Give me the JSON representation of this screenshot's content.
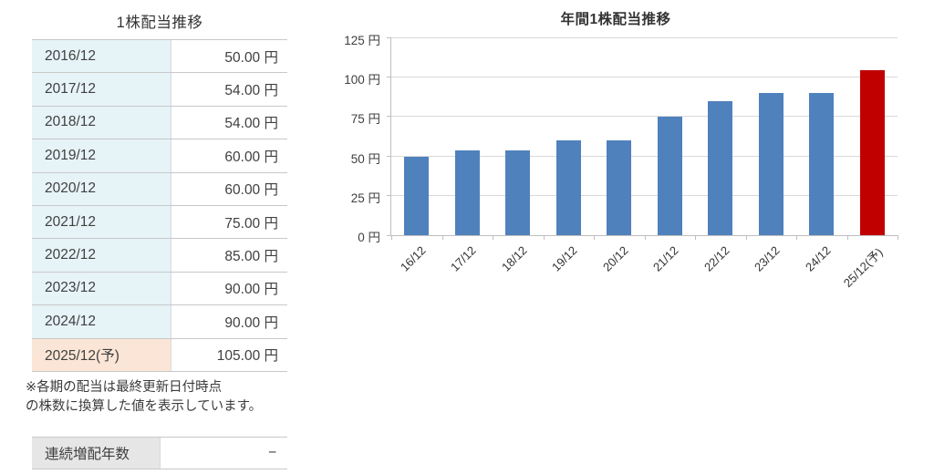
{
  "left_panel": {
    "title": "1株配当推移",
    "rows": [
      {
        "period": "2016/12",
        "value": "50.00 円",
        "forecast": false
      },
      {
        "period": "2017/12",
        "value": "54.00 円",
        "forecast": false
      },
      {
        "period": "2018/12",
        "value": "54.00 円",
        "forecast": false
      },
      {
        "period": "2019/12",
        "value": "60.00 円",
        "forecast": false
      },
      {
        "period": "2020/12",
        "value": "60.00 円",
        "forecast": false
      },
      {
        "period": "2021/12",
        "value": "75.00 円",
        "forecast": false
      },
      {
        "period": "2022/12",
        "value": "85.00 円",
        "forecast": false
      },
      {
        "period": "2023/12",
        "value": "90.00 円",
        "forecast": false
      },
      {
        "period": "2024/12",
        "value": "90.00 円",
        "forecast": false
      },
      {
        "period": "2025/12(予)",
        "value": "105.00 円",
        "forecast": true
      }
    ],
    "note_lines": [
      "※各期の配当は最終更新日付時点",
      "の株数に換算した値を表示しています。"
    ],
    "streak": {
      "label": "連続増配年数",
      "value": "−"
    }
  },
  "chart_data": {
    "type": "bar",
    "title": "年間1株配当推移",
    "categories": [
      "16/12",
      "17/12",
      "18/12",
      "19/12",
      "20/12",
      "21/12",
      "22/12",
      "23/12",
      "24/12",
      "25/12(予)"
    ],
    "values": [
      50,
      54,
      54,
      60,
      60,
      75,
      85,
      90,
      90,
      105
    ],
    "unit": "円",
    "ylim": [
      0,
      125
    ],
    "yticks": [
      0,
      25,
      50,
      75,
      100,
      125
    ],
    "ytick_labels": [
      "0 円",
      "25 円",
      "50 円",
      "75 円",
      "100 円",
      "125 円"
    ],
    "forecast_index": 9,
    "grid": true,
    "legend_position": "none",
    "xlabel": "",
    "ylabel": ""
  },
  "colors": {
    "bar_blue": "#4F81BD",
    "bar_red": "#C00000",
    "cell_cyan": "#E6F3F7",
    "cell_peach": "#FBE5D6",
    "cell_gray": "#E7E6E6",
    "grid": "#D9D9D9",
    "text": "#3B3B3B"
  }
}
